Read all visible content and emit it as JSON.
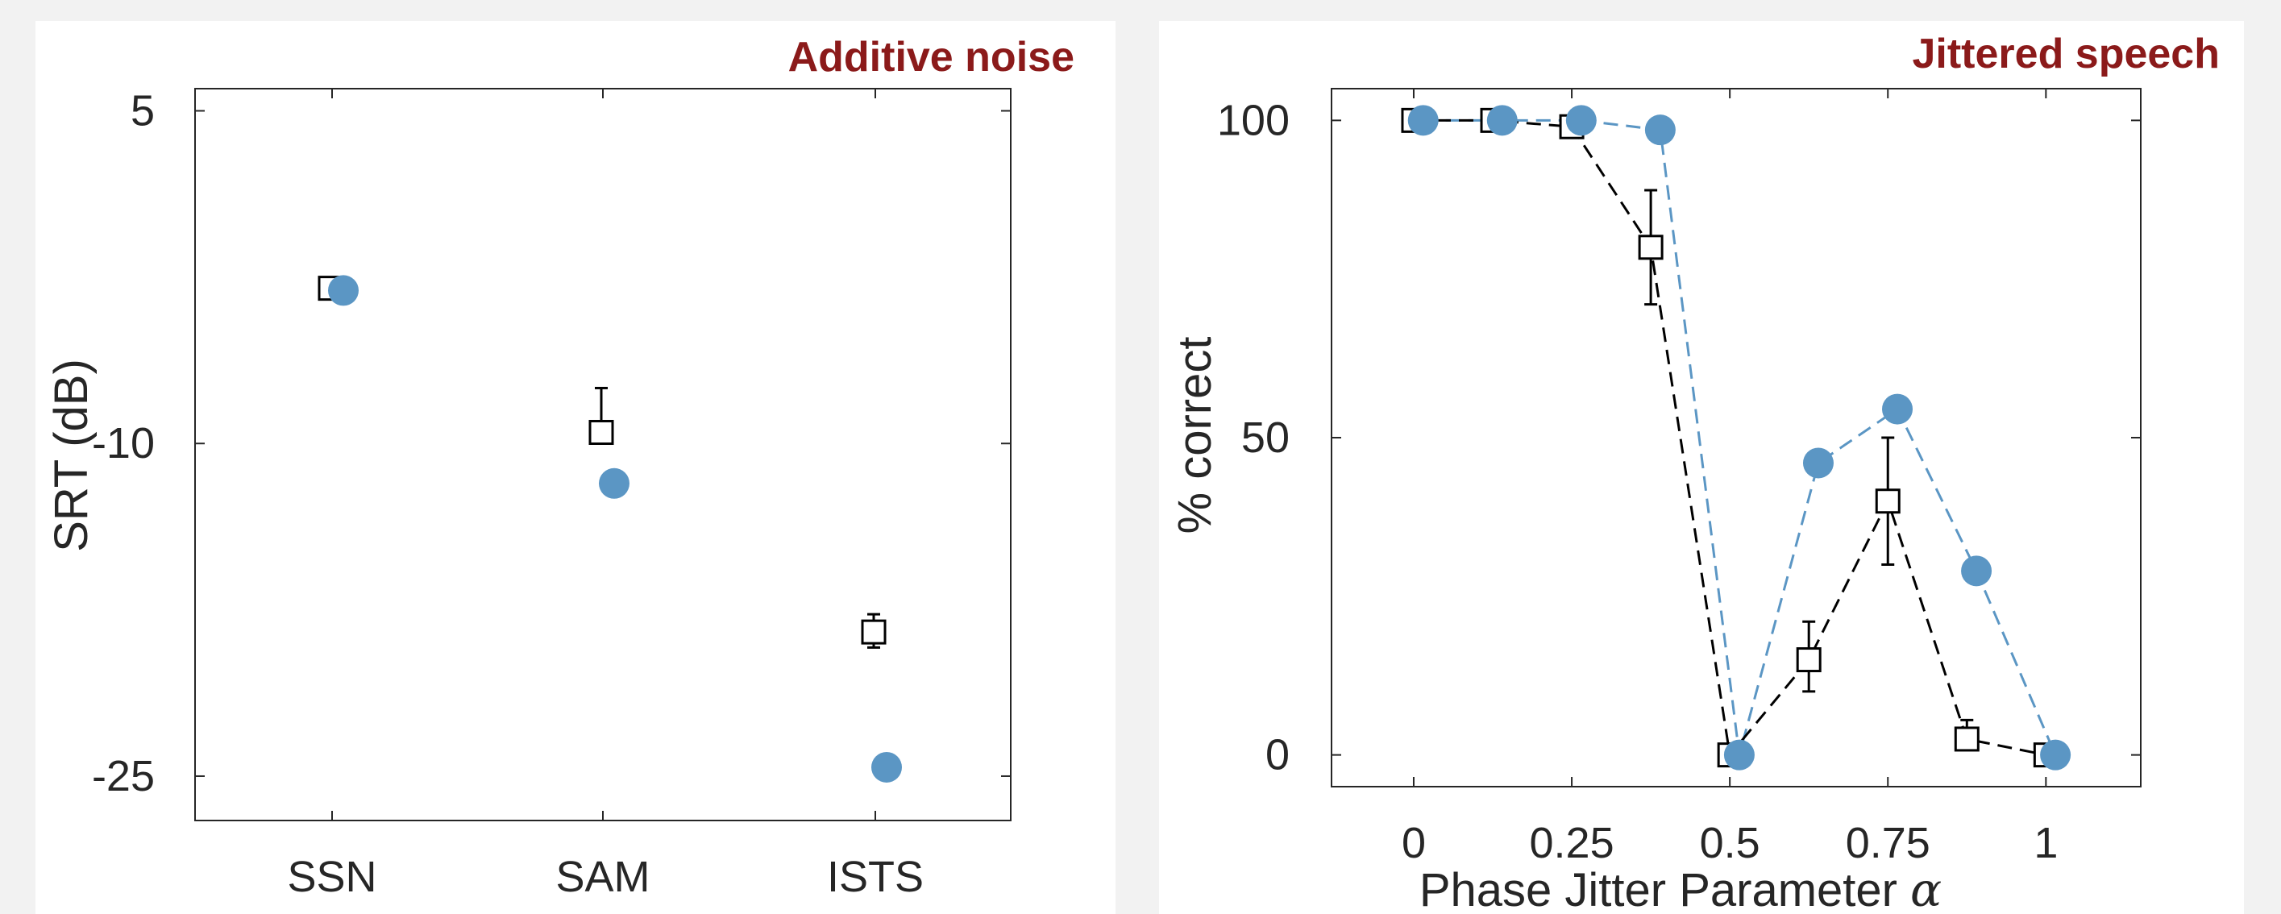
{
  "colors": {
    "title": "#8b1a1a",
    "model": "#5b96c4",
    "human": "#000000",
    "axis": "#262626"
  },
  "chart_data": [
    {
      "type": "scatter",
      "title": "Additive noise",
      "xlabel": "",
      "ylabel": "SRT (dB)",
      "categories": [
        "SSN",
        "SAM",
        "ISTS"
      ],
      "ylim": [
        -27,
        6
      ],
      "yticks": [
        5,
        -10,
        -25
      ],
      "series": [
        {
          "marker": "square-open",
          "color": "#000000",
          "values": [
            -3,
            -9.5,
            -18.5
          ],
          "err_low": [
            0,
            0,
            0.7
          ],
          "err_high": [
            0,
            2,
            0.8
          ]
        },
        {
          "marker": "circle-filled",
          "color": "#5b96c4",
          "values": [
            -3.1,
            -11.8,
            -24.6
          ]
        }
      ]
    },
    {
      "type": "line",
      "title": "Jittered speech",
      "xlabel": "Phase Jitter Parameter",
      "xlabel_symbol": "α",
      "ylabel": "% correct",
      "xlim": [
        -0.13,
        1.15
      ],
      "ylim": [
        -5,
        105
      ],
      "xticks": [
        0,
        0.25,
        0.5,
        0.75,
        1
      ],
      "xtick_labels": [
        "0",
        "0.25",
        "0.5",
        "0.75",
        "1"
      ],
      "yticks": [
        0,
        50,
        100
      ],
      "series": [
        {
          "marker": "square-open",
          "color": "#000000",
          "line": "dashed",
          "x": [
            0,
            0.125,
            0.25,
            0.375,
            0.5,
            0.625,
            0.75,
            0.875,
            1
          ],
          "values": [
            100,
            100,
            99,
            80,
            0,
            15,
            40,
            2.5,
            0
          ],
          "err_low": [
            0,
            0,
            0,
            9,
            0,
            5,
            10,
            1.5,
            0
          ],
          "err_high": [
            0,
            0,
            0,
            9,
            0,
            6,
            10,
            3,
            0
          ]
        },
        {
          "marker": "circle-filled",
          "color": "#5b96c4",
          "line": "dashed",
          "x": [
            0.015,
            0.14,
            0.265,
            0.39,
            0.515,
            0.64,
            0.765,
            0.89,
            1.015
          ],
          "values": [
            100,
            100,
            100,
            98.5,
            0,
            46,
            54.5,
            29,
            0
          ]
        }
      ]
    }
  ]
}
